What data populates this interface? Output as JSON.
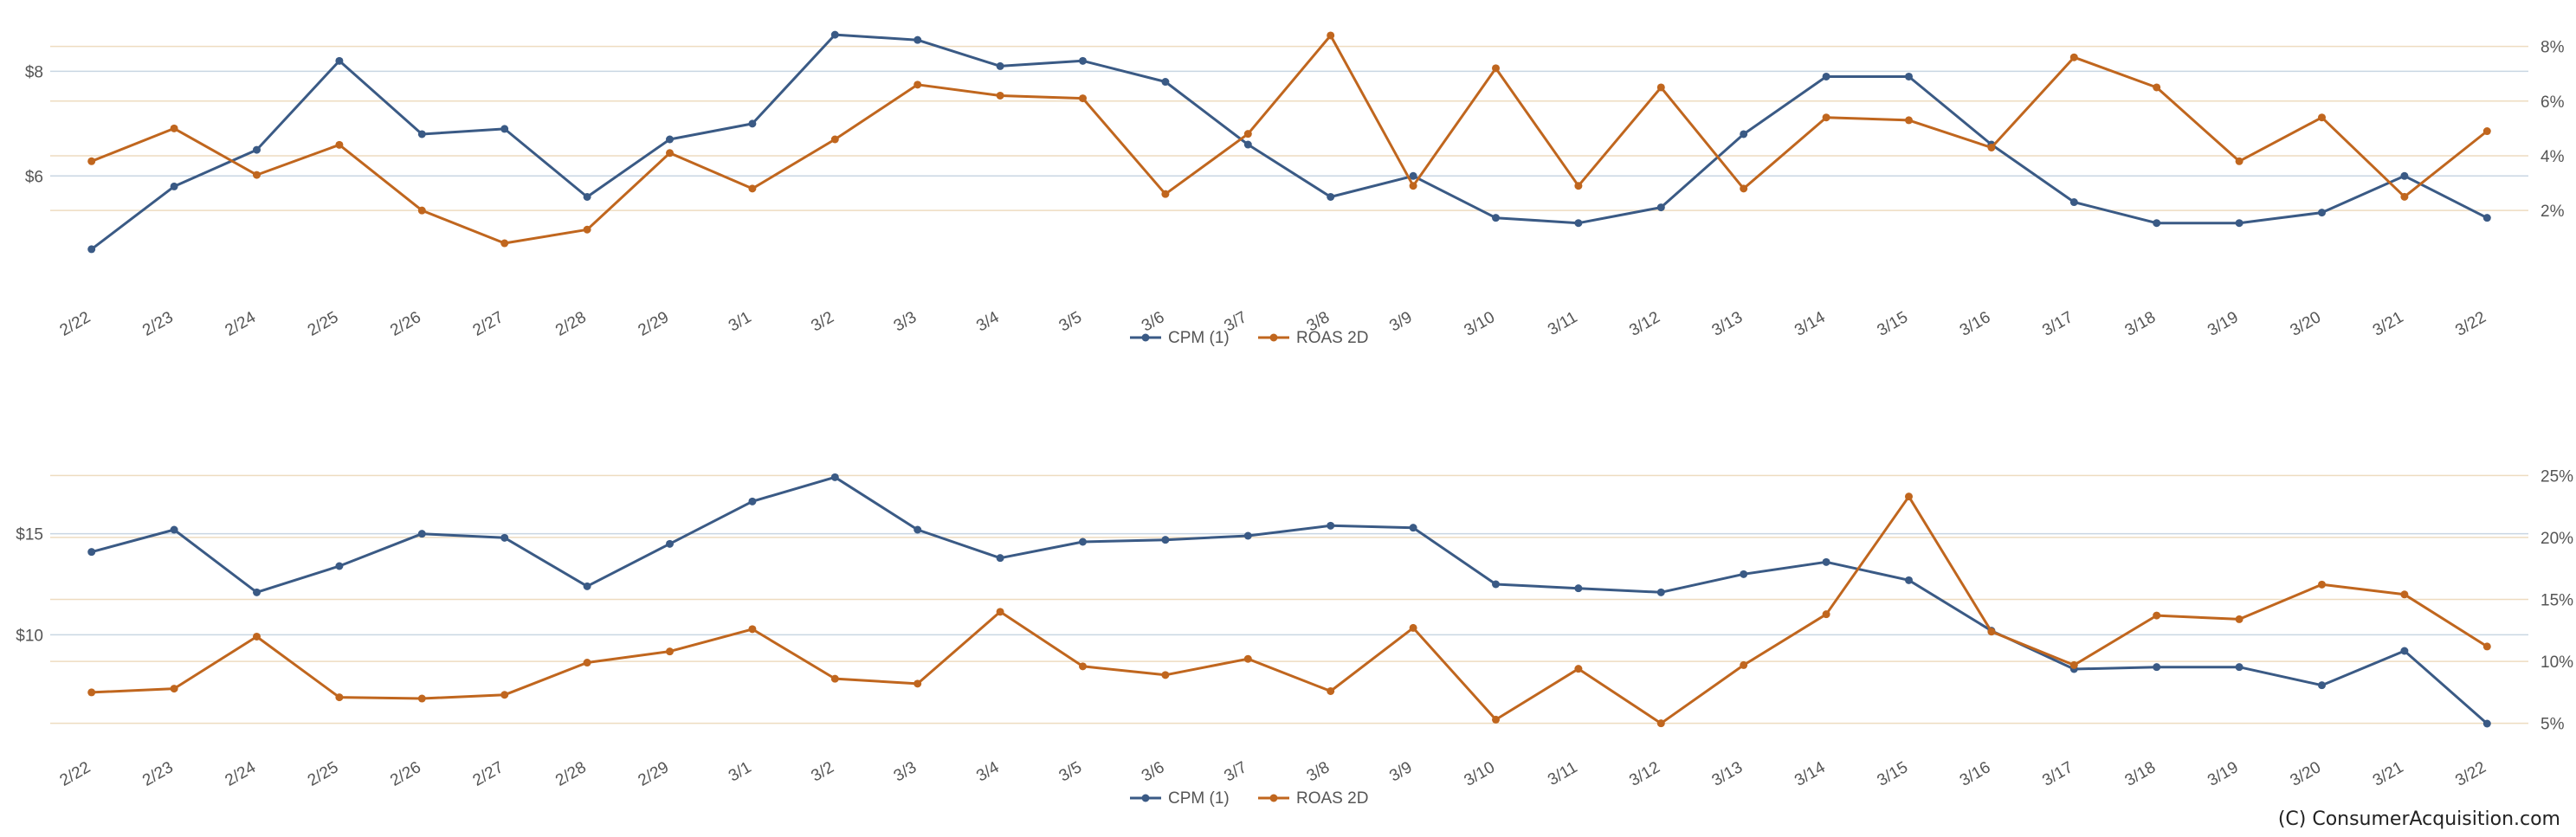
{
  "copyright": "(C) ConsumerAcquisition.com",
  "colors": {
    "cpm": "#3a5a85",
    "roas": "#c0661e",
    "left_grid": "#c9d6e3",
    "right_grid": "#eedcc0"
  },
  "chart_data": [
    {
      "type": "line",
      "categories": [
        "2/22",
        "2/23",
        "2/24",
        "2/25",
        "2/26",
        "2/27",
        "2/28",
        "2/29",
        "3/1",
        "3/2",
        "3/3",
        "3/4",
        "3/5",
        "3/6",
        "3/7",
        "3/8",
        "3/9",
        "3/10",
        "3/11",
        "3/12",
        "3/13",
        "3/14",
        "3/15",
        "3/16",
        "3/17",
        "3/18",
        "3/19",
        "3/20",
        "3/21",
        "3/22"
      ],
      "series": [
        {
          "name": "CPM (1)",
          "axis": "left",
          "values": [
            4.6,
            5.8,
            6.5,
            8.2,
            6.8,
            6.9,
            5.6,
            6.7,
            7.0,
            8.7,
            8.6,
            8.1,
            8.2,
            7.8,
            6.6,
            5.6,
            6.0,
            5.2,
            5.1,
            5.4,
            6.8,
            7.9,
            7.9,
            6.6,
            5.5,
            5.1,
            5.1,
            5.3,
            6.0,
            5.2
          ]
        },
        {
          "name": "ROAS 2D",
          "axis": "right",
          "values": [
            3.8,
            5.0,
            3.3,
            4.4,
            2.0,
            0.8,
            1.3,
            4.1,
            2.8,
            4.6,
            6.6,
            6.2,
            6.1,
            2.6,
            4.8,
            8.4,
            2.9,
            7.2,
            2.9,
            6.5,
            2.8,
            5.4,
            5.3,
            4.3,
            7.6,
            6.5,
            3.8,
            5.4,
            2.5,
            4.9
          ]
        }
      ],
      "left_axis": {
        "ticks": [
          6,
          8
        ],
        "tick_labels": [
          "$6",
          "$8"
        ],
        "range": [
          4.4,
          9.0
        ]
      },
      "right_axis": {
        "ticks": [
          2,
          4,
          6,
          8
        ],
        "tick_labels": [
          "2%",
          "4%",
          "6%",
          "8%"
        ],
        "range": [
          0.2,
          9.0
        ]
      },
      "legend": [
        "CPM (1)",
        "ROAS 2D"
      ],
      "legend_position": "bottom"
    },
    {
      "type": "line",
      "categories": [
        "2/22",
        "2/23",
        "2/24",
        "2/25",
        "2/26",
        "2/27",
        "2/28",
        "2/29",
        "3/1",
        "3/2",
        "3/3",
        "3/4",
        "3/5",
        "3/6",
        "3/7",
        "3/8",
        "3/9",
        "3/10",
        "3/11",
        "3/12",
        "3/13",
        "3/14",
        "3/15",
        "3/16",
        "3/17",
        "3/18",
        "3/19",
        "3/20",
        "3/21",
        "3/22"
      ],
      "series": [
        {
          "name": "CPM (1)",
          "axis": "left",
          "values": [
            14.1,
            15.2,
            12.1,
            13.4,
            15.0,
            14.8,
            12.4,
            14.5,
            16.6,
            17.8,
            15.2,
            13.8,
            14.6,
            14.7,
            14.9,
            15.4,
            15.3,
            12.5,
            12.3,
            12.1,
            13.0,
            13.6,
            12.7,
            10.2,
            8.3,
            8.4,
            8.4,
            7.5,
            9.2,
            5.6
          ]
        },
        {
          "name": "ROAS 2D",
          "axis": "right",
          "values": [
            7.5,
            7.8,
            12.0,
            7.1,
            7.0,
            7.3,
            9.9,
            10.8,
            12.6,
            8.6,
            8.2,
            14.0,
            9.6,
            8.9,
            10.2,
            7.6,
            12.7,
            5.3,
            9.4,
            5.0,
            9.7,
            13.8,
            23.3,
            12.4,
            9.7,
            13.7,
            13.4,
            16.2,
            15.4,
            11.2
          ]
        }
      ],
      "left_axis": {
        "ticks": [
          10,
          15
        ],
        "tick_labels": [
          "$10",
          "$15"
        ],
        "range": [
          5.0,
          18.5
        ]
      },
      "right_axis": {
        "ticks": [
          5,
          10,
          15,
          20,
          25
        ],
        "tick_labels": [
          "5%",
          "10%",
          "15%",
          "20%",
          "25%"
        ],
        "range": [
          4.0,
          26.0
        ]
      },
      "legend": [
        "CPM (1)",
        "ROAS 2D"
      ],
      "legend_position": "bottom"
    }
  ]
}
